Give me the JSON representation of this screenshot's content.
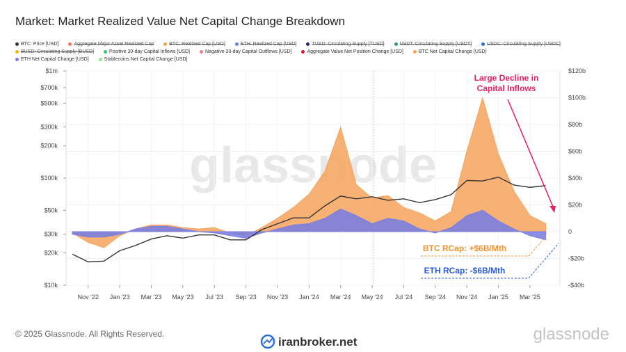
{
  "title": "Market: Market Realized Value Net Capital Change Breakdown",
  "footer": "© 2025 Glassnode. All Rights Reserved.",
  "watermark": "glassnode",
  "logo": "glassnode",
  "source_mark": "iranbroker.net",
  "legend_items": [
    {
      "name": "Aggregate Major Asset Realized Cap",
      "color": "#f07a6a",
      "hidden": true
    },
    {
      "name": "BTC: Realized Cap [USD]",
      "color": "#f5a142",
      "hidden": true
    },
    {
      "name": "ETH: Realized Cap [USD]",
      "color": "#6b7fd7",
      "hidden": true
    },
    {
      "name": "TUSD: Circulating Supply [TUSD]",
      "color": "#1f2a6b",
      "hidden": true
    },
    {
      "name": "USDT: Circulating Supply [USDT]",
      "color": "#26a17b",
      "hidden": true
    },
    {
      "name": "USDC: Circulating Supply [USDC]",
      "color": "#2775ca",
      "hidden": true
    },
    {
      "name": "BUSD: Circulating Supply [BUSD]",
      "color": "#f0b90b",
      "hidden": true
    },
    {
      "name": "Positive 30-day Capital Inflows [USD]",
      "color": "#2ecc71",
      "hidden": false
    },
    {
      "name": "Negative 30-day Capital Outflows [USD]",
      "color": "#f07a8a",
      "hidden": false
    },
    {
      "name": "Aggregate Value Net Position Change [USD]",
      "color": "#e0182d",
      "hidden": false
    },
    {
      "name": "Stablecoins Net Capital Change [USD]",
      "color": "#8ee28e",
      "hidden": false
    }
  ],
  "chart_data": {
    "type": "line-area",
    "annotations": [
      {
        "lines": [
          "Large Decline in",
          "Capital Inflows"
        ],
        "color": "#e91e63"
      },
      {
        "lines": [
          "BTC RCap: +$6B/Mth"
        ],
        "color": "#f5922e"
      },
      {
        "lines": [
          "ETH RCap: -$6B/Mth"
        ],
        "color": "#2a5bd7"
      }
    ],
    "x": [
      "2022-10",
      "2022-11",
      "2022-12",
      "2023-01",
      "2023-02",
      "2023-03",
      "2023-04",
      "2023-05",
      "2023-06",
      "2023-07",
      "2023-08",
      "2023-09",
      "2023-10",
      "2023-11",
      "2023-12",
      "2024-01",
      "2024-02",
      "2024-03",
      "2024-04",
      "2024-05",
      "2024-06",
      "2024-07",
      "2024-08",
      "2024-09",
      "2024-10",
      "2024-11",
      "2024-12",
      "2025-01",
      "2025-02",
      "2025-03",
      "2025-04"
    ],
    "xticks": [
      {
        "value": "2022-11",
        "label": "Nov '22"
      },
      {
        "value": "2023-01",
        "label": "Jan '23"
      },
      {
        "value": "2023-03",
        "label": "Mar '23"
      },
      {
        "value": "2023-05",
        "label": "May '23"
      },
      {
        "value": "2023-07",
        "label": "Jul '23"
      },
      {
        "value": "2023-09",
        "label": "Sep '23"
      },
      {
        "value": "2023-11",
        "label": "Nov '23"
      },
      {
        "value": "2024-01",
        "label": "Jan '24"
      },
      {
        "value": "2024-03",
        "label": "Mar '24"
      },
      {
        "value": "2024-05",
        "label": "May '24"
      },
      {
        "value": "2024-07",
        "label": "Jul '24"
      },
      {
        "value": "2024-09",
        "label": "Sep '24"
      },
      {
        "value": "2024-11",
        "label": "Nov '24"
      },
      {
        "value": "2025-01",
        "label": "Jan '25"
      },
      {
        "value": "2025-03",
        "label": "Mar '25"
      }
    ],
    "ylog": true,
    "ylim": [
      10000,
      1000000
    ],
    "yticks": [
      {
        "value": 10000,
        "label": "$10k"
      },
      {
        "value": 20000,
        "label": "$20k"
      },
      {
        "value": 30000,
        "label": "$30k"
      },
      {
        "value": 50000,
        "label": "$50k"
      },
      {
        "value": 100000,
        "label": "$100k"
      },
      {
        "value": 200000,
        "label": "$200k"
      },
      {
        "value": 300000,
        "label": "$300k"
      },
      {
        "value": 500000,
        "label": "$500k"
      },
      {
        "value": 700000,
        "label": "$700k"
      },
      {
        "value": 1000000,
        "label": "$1m"
      }
    ],
    "y2lim": [
      -40,
      120
    ],
    "y2ticks": [
      {
        "value": -40,
        "label": "-$40b"
      },
      {
        "value": -20,
        "label": "-$20b"
      },
      0,
      {
        "value": 20,
        "label": "$20b"
      },
      {
        "value": 40,
        "label": "$40b"
      },
      {
        "value": 60,
        "label": "$60b"
      },
      {
        "value": 80,
        "label": "$80b"
      },
      {
        "value": 100,
        "label": "$100b"
      },
      {
        "value": 120,
        "label": "$120b"
      }
    ],
    "grid": true,
    "series": [
      {
        "name": "BTC: Price [USD]",
        "color": "#333333",
        "kind": "line",
        "values": [
          19500,
          16500,
          16800,
          21000,
          23500,
          27000,
          29000,
          27500,
          29500,
          29500,
          26500,
          26500,
          33000,
          37500,
          42500,
          42500,
          55000,
          68000,
          64000,
          67000,
          62000,
          64000,
          59000,
          63000,
          70000,
          95000,
          94000,
          102000,
          86000,
          82000,
          85000
        ]
      },
      {
        "name": "BTC Net Capital Change [USD]",
        "color": "#f7a35c",
        "kind": "area",
        "axis": "y2",
        "values": [
          -1,
          -8,
          -12,
          -3,
          2,
          5,
          5,
          3,
          2,
          3,
          -1,
          -3,
          3,
          10,
          18,
          28,
          45,
          78,
          35,
          25,
          27,
          18,
          14,
          8,
          15,
          60,
          100,
          58,
          30,
          12,
          6
        ]
      },
      {
        "name": "ETH Net Capital Change [USD]",
        "color": "#7b7fe0",
        "kind": "area",
        "axis": "y2",
        "values": [
          -2,
          -4,
          -4,
          -2,
          2,
          4,
          4,
          2,
          0,
          -1,
          -3,
          -5,
          -1,
          2,
          5,
          6,
          10,
          17,
          12,
          6,
          10,
          8,
          2,
          -1,
          3,
          12,
          16,
          8,
          2,
          -3,
          -6
        ]
      }
    ]
  }
}
